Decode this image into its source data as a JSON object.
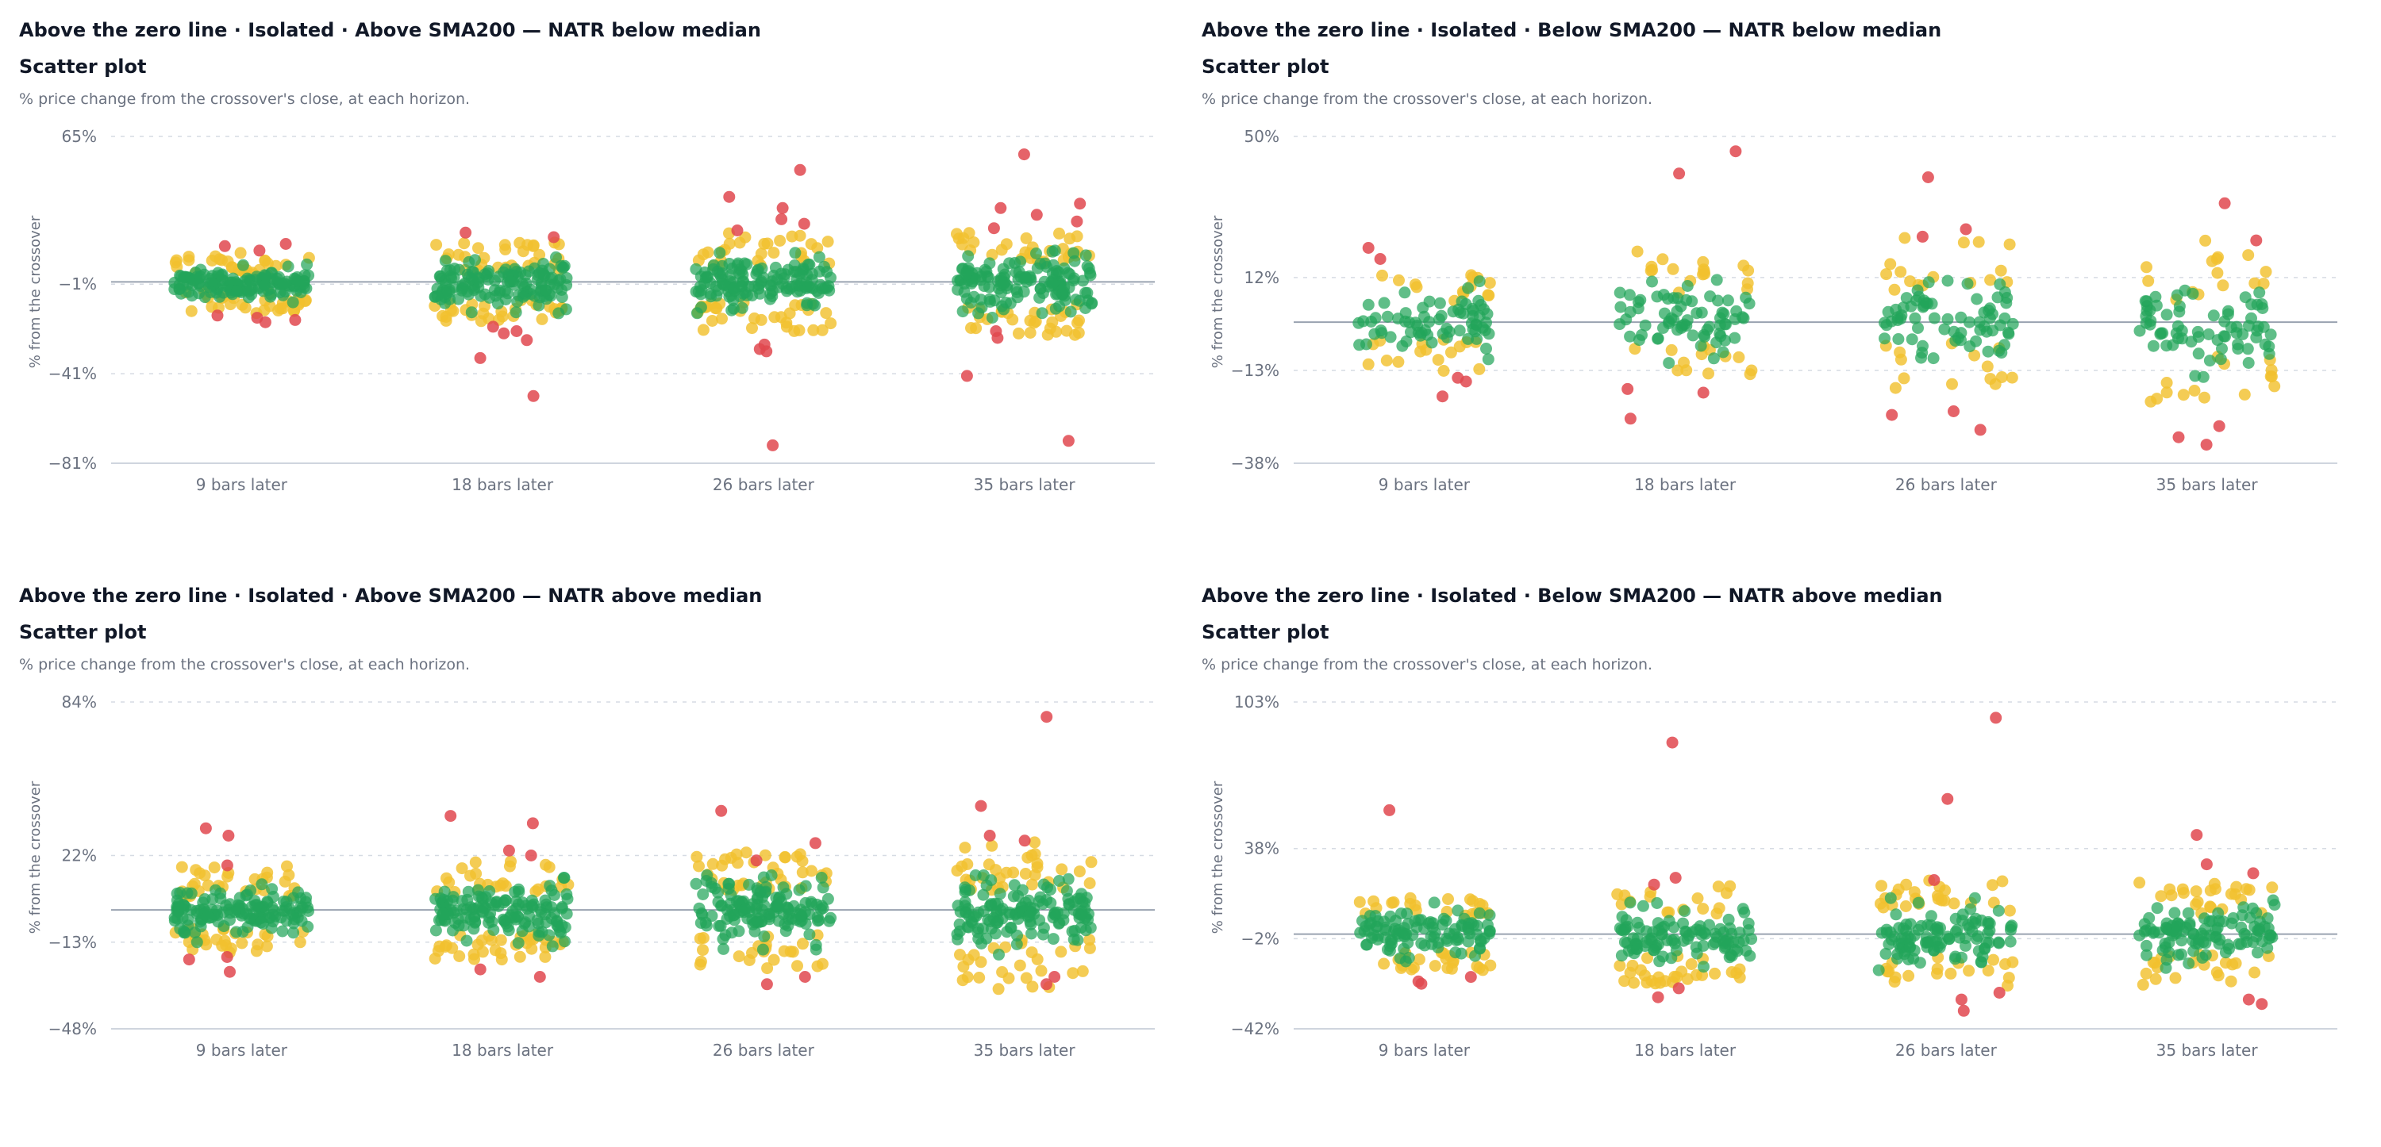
{
  "colors": {
    "green": "#22a55a",
    "yellow": "#f2c12e",
    "red": "#e0484f",
    "grid": "#d6dbe3",
    "zero": "#9aa3b0"
  },
  "panels": [
    {
      "title": "Above the zero line · Isolated · Above SMA200 — NATR below median",
      "subtitle": "Scatter plot",
      "description": "% price change from the crossover's close, at each horizon."
    },
    {
      "title": "Above the zero line · Isolated · Below SMA200 — NATR below median",
      "subtitle": "Scatter plot",
      "description": "% price change from the crossover's close, at each horizon."
    },
    {
      "title": "Above the zero line · Isolated · Above SMA200 — NATR above median",
      "subtitle": "Scatter plot",
      "description": "% price change from the crossover's close, at each horizon."
    },
    {
      "title": "Above the zero line · Isolated · Below SMA200 — NATR above median",
      "subtitle": "Scatter plot",
      "description": "% price change from the crossover's close, at each horizon."
    }
  ],
  "chart_data": [
    {
      "type": "scatter",
      "title": "Above the zero line · Isolated · Above SMA200 — NATR below median",
      "ylabel": "% from the crossover",
      "categories": [
        "9 bars later",
        "18 bars later",
        "26 bars later",
        "35 bars later"
      ],
      "y_ticks": [
        {
          "value": 65,
          "label": "65%"
        },
        {
          "value": -1,
          "label": "−1%"
        },
        {
          "value": -41,
          "label": "−41%"
        },
        {
          "value": -81,
          "label": "−81%"
        }
      ],
      "ylim": [
        -81,
        65
      ],
      "grid": true,
      "series_summary": [
        {
          "category": "9 bars later",
          "count": 200,
          "green_range": [
            -8,
            6
          ],
          "yellow_range": [
            -14,
            13
          ],
          "outliers": [
            17,
            14,
            16,
            -15,
            -17,
            -16,
            -18
          ]
        },
        {
          "category": "18 bars later",
          "count": 200,
          "green_range": [
            -12,
            9
          ],
          "yellow_range": [
            -18,
            18
          ],
          "outliers": [
            20,
            22,
            -20,
            -23,
            -26,
            -34,
            -51,
            -22
          ]
        },
        {
          "category": "26 bars later",
          "count": 200,
          "green_range": [
            -13,
            11
          ],
          "yellow_range": [
            -22,
            22
          ],
          "outliers": [
            50,
            38,
            33,
            28,
            26,
            23,
            -30,
            -31,
            -73,
            -28
          ]
        },
        {
          "category": "35 bars later",
          "count": 200,
          "green_range": [
            -14,
            12
          ],
          "yellow_range": [
            -24,
            22
          ],
          "outliers": [
            57,
            35,
            33,
            27,
            24,
            30,
            -42,
            -71,
            -22,
            -25
          ]
        }
      ]
    },
    {
      "type": "scatter",
      "title": "Above the zero line · Isolated · Below SMA200 — NATR below median",
      "ylabel": "% from the crossover",
      "categories": [
        "9 bars later",
        "18 bars later",
        "26 bars later",
        "35 bars later"
      ],
      "y_ticks": [
        {
          "value": 50,
          "label": "50%"
        },
        {
          "value": 12,
          "label": "12%"
        },
        {
          "value": -13,
          "label": "−13%"
        },
        {
          "value": -38,
          "label": "−38%"
        }
      ],
      "ylim": [
        -38,
        50
      ],
      "grid": true,
      "series_summary": [
        {
          "category": "9 bars later",
          "count": 100,
          "green_range": [
            -8,
            9
          ],
          "yellow_range": [
            -14,
            13
          ],
          "outliers": [
            20,
            17,
            -16,
            -20,
            -15
          ]
        },
        {
          "category": "18 bars later",
          "count": 100,
          "green_range": [
            -9,
            11
          ],
          "yellow_range": [
            -15,
            19
          ],
          "outliers": [
            40,
            46,
            -18,
            -19,
            -26
          ]
        },
        {
          "category": "26 bars later",
          "count": 100,
          "green_range": [
            -9,
            12
          ],
          "yellow_range": [
            -19,
            23
          ],
          "outliers": [
            39,
            25,
            23,
            -24,
            -25,
            -29
          ]
        },
        {
          "category": "35 bars later",
          "count": 100,
          "green_range": [
            -13,
            10
          ],
          "yellow_range": [
            -22,
            22
          ],
          "outliers": [
            32,
            22,
            -28,
            -33,
            -31
          ]
        }
      ]
    },
    {
      "type": "scatter",
      "title": "Above the zero line · Isolated · Above SMA200 — NATR above median",
      "ylabel": "% from the crossover",
      "categories": [
        "9 bars later",
        "18 bars later",
        "26 bars later",
        "35 bars later"
      ],
      "y_ticks": [
        {
          "value": 84,
          "label": "84%"
        },
        {
          "value": 22,
          "label": "22%"
        },
        {
          "value": -13,
          "label": "−13%"
        },
        {
          "value": -48,
          "label": "−48%"
        }
      ],
      "ylim": [
        -48,
        84
      ],
      "grid": true,
      "series_summary": [
        {
          "category": "9 bars later",
          "count": 200,
          "green_range": [
            -11,
            9
          ],
          "yellow_range": [
            -18,
            18
          ],
          "outliers": [
            33,
            30,
            18,
            -20,
            -25,
            -19
          ]
        },
        {
          "category": "18 bars later",
          "count": 200,
          "green_range": [
            -13,
            11
          ],
          "yellow_range": [
            -20,
            20
          ],
          "outliers": [
            38,
            35,
            24,
            22,
            -27,
            -24
          ]
        },
        {
          "category": "26 bars later",
          "count": 200,
          "green_range": [
            -14,
            12
          ],
          "yellow_range": [
            -24,
            24
          ],
          "outliers": [
            40,
            27,
            20,
            -27,
            -30
          ]
        },
        {
          "category": "35 bars later",
          "count": 200,
          "green_range": [
            -16,
            12
          ],
          "yellow_range": [
            -32,
            28
          ],
          "outliers": [
            78,
            42,
            30,
            28,
            -27,
            -30
          ]
        }
      ]
    },
    {
      "type": "scatter",
      "title": "Above the zero line · Isolated · Below SMA200 — NATR above median",
      "ylabel": "% from the crossover",
      "categories": [
        "9 bars later",
        "18 bars later",
        "26 bars later",
        "35 bars later"
      ],
      "y_ticks": [
        {
          "value": 103,
          "label": "103%"
        },
        {
          "value": 38,
          "label": "38%"
        },
        {
          "value": -2,
          "label": "−2%"
        },
        {
          "value": -42,
          "label": "−42%"
        }
      ],
      "ylim": [
        -42,
        103
      ],
      "grid": true,
      "series_summary": [
        {
          "category": "9 bars later",
          "count": 150,
          "green_range": [
            -12,
            12
          ],
          "yellow_range": [
            -16,
            16
          ],
          "outliers": [
            55,
            -19,
            -21,
            -22
          ]
        },
        {
          "category": "18 bars later",
          "count": 150,
          "green_range": [
            -13,
            12
          ],
          "yellow_range": [
            -22,
            22
          ],
          "outliers": [
            85,
            25,
            22,
            -24,
            -28
          ]
        },
        {
          "category": "26 bars later",
          "count": 150,
          "green_range": [
            -14,
            14
          ],
          "yellow_range": [
            -24,
            24
          ],
          "outliers": [
            96,
            60,
            24,
            -26,
            -29,
            -34
          ]
        },
        {
          "category": "35 bars later",
          "count": 150,
          "green_range": [
            -13,
            13
          ],
          "yellow_range": [
            -23,
            23
          ],
          "outliers": [
            44,
            31,
            27,
            -29,
            -31
          ]
        }
      ]
    }
  ]
}
